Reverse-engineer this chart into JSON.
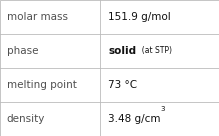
{
  "rows": [
    {
      "label": "molar mass",
      "value_parts": [
        {
          "text": "151.9 g/mol",
          "bold": false,
          "small": false,
          "super": false
        }
      ]
    },
    {
      "label": "phase",
      "value_parts": [
        {
          "text": "solid",
          "bold": true,
          "small": false,
          "super": false
        },
        {
          "text": "  (at STP)",
          "bold": false,
          "small": true,
          "super": false
        }
      ]
    },
    {
      "label": "melting point",
      "value_parts": [
        {
          "text": "73 °C",
          "bold": false,
          "small": false,
          "super": false
        }
      ]
    },
    {
      "label": "density",
      "value_parts": [
        {
          "text": "3.48 g/cm",
          "bold": false,
          "small": false,
          "super": false
        },
        {
          "text": "3",
          "bold": false,
          "small": false,
          "super": true
        }
      ]
    }
  ],
  "bg_color": "#ffffff",
  "border_color": "#bbbbbb",
  "label_color": "#505050",
  "value_color": "#111111",
  "col_split": 0.455,
  "font_size_label": 7.5,
  "font_size_value": 7.5,
  "font_size_small": 5.5,
  "font_size_super": 5.0
}
